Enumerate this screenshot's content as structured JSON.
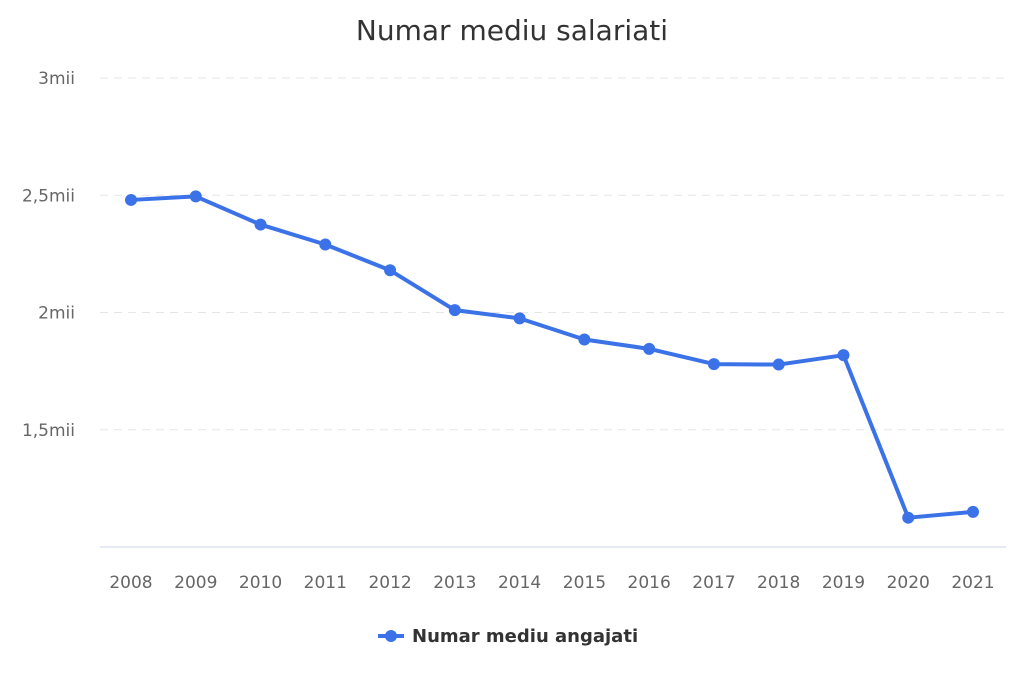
{
  "chart_data": {
    "type": "line",
    "title": "Numar mediu salariati",
    "xlabel": "",
    "ylabel": "",
    "categories": [
      "2008",
      "2009",
      "2010",
      "2011",
      "2012",
      "2013",
      "2014",
      "2015",
      "2016",
      "2017",
      "2018",
      "2019",
      "2020",
      "2021"
    ],
    "series": [
      {
        "name": "Numar mediu angajati",
        "color": "#3b72e8",
        "values": [
          2480,
          2495,
          2375,
          2290,
          2180,
          2010,
          1975,
          1885,
          1845,
          1780,
          1778,
          1818,
          1125,
          1150
        ]
      }
    ],
    "ylim": [
      1000,
      3000
    ],
    "yticks": [
      {
        "value": 1500,
        "label": "1,5mii"
      },
      {
        "value": 2000,
        "label": "2mii"
      },
      {
        "value": 2500,
        "label": "2,5mii"
      },
      {
        "value": 3000,
        "label": "3mii"
      }
    ],
    "grid": true,
    "legend_position": "bottom-center"
  }
}
